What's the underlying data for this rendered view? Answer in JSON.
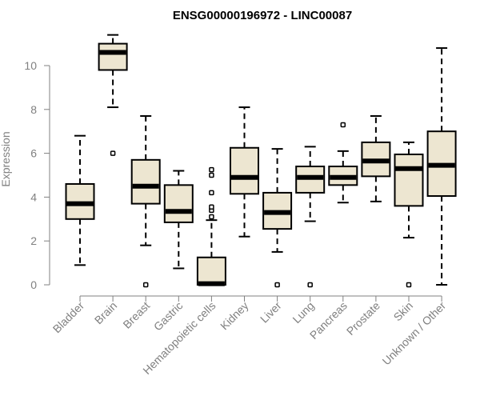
{
  "chart_data": {
    "type": "box",
    "title": "ENSG00000196972 - LINC00087",
    "xlabel": "",
    "ylabel": "Expression",
    "ylim": [
      0,
      11.5
    ],
    "yticks": [
      0,
      2,
      4,
      6,
      8,
      10
    ],
    "box_fill": "#ede6d1",
    "grid": false,
    "categories": [
      "Bladder",
      "Brain",
      "Breast",
      "Gastric",
      "Hematopoietic cells",
      "Kidney",
      "Liver",
      "Lung",
      "Pancreas",
      "Prostate",
      "Skin",
      "Unknown / Other"
    ],
    "boxes": [
      {
        "whisker_low": 0.9,
        "q1": 3.0,
        "median": 3.7,
        "q3": 4.6,
        "whisker_high": 6.8,
        "outliers": []
      },
      {
        "whisker_low": 8.1,
        "q1": 9.8,
        "median": 10.6,
        "q3": 11.0,
        "whisker_high": 11.4,
        "outliers": [
          6.0
        ]
      },
      {
        "whisker_low": 1.8,
        "q1": 3.7,
        "median": 4.5,
        "q3": 5.7,
        "whisker_high": 7.7,
        "outliers": [
          0.0
        ]
      },
      {
        "whisker_low": 0.75,
        "q1": 2.85,
        "median": 3.35,
        "q3": 4.55,
        "whisker_high": 5.2,
        "outliers": []
      },
      {
        "whisker_low": 0.0,
        "q1": 0.0,
        "median": 0.05,
        "q3": 1.25,
        "whisker_high": 2.95,
        "outliers": [
          3.1,
          3.4,
          3.55,
          4.2,
          5.0,
          5.25
        ]
      },
      {
        "whisker_low": 2.2,
        "q1": 4.15,
        "median": 4.9,
        "q3": 6.25,
        "whisker_high": 8.1,
        "outliers": []
      },
      {
        "whisker_low": 1.5,
        "q1": 2.55,
        "median": 3.3,
        "q3": 4.2,
        "whisker_high": 6.2,
        "outliers": [
          0.0
        ]
      },
      {
        "whisker_low": 2.9,
        "q1": 4.2,
        "median": 4.9,
        "q3": 5.4,
        "whisker_high": 6.3,
        "outliers": [
          0.0
        ]
      },
      {
        "whisker_low": 3.75,
        "q1": 4.55,
        "median": 4.9,
        "q3": 5.4,
        "whisker_high": 6.1,
        "outliers": [
          7.3
        ]
      },
      {
        "whisker_low": 3.8,
        "q1": 4.95,
        "median": 5.65,
        "q3": 6.5,
        "whisker_high": 7.7,
        "outliers": []
      },
      {
        "whisker_low": 2.15,
        "q1": 3.6,
        "median": 5.3,
        "q3": 5.95,
        "whisker_high": 6.5,
        "outliers": [
          0.0
        ]
      },
      {
        "whisker_low": 0.0,
        "q1": 4.05,
        "median": 5.45,
        "q3": 7.0,
        "whisker_high": 10.8,
        "outliers": []
      }
    ]
  }
}
